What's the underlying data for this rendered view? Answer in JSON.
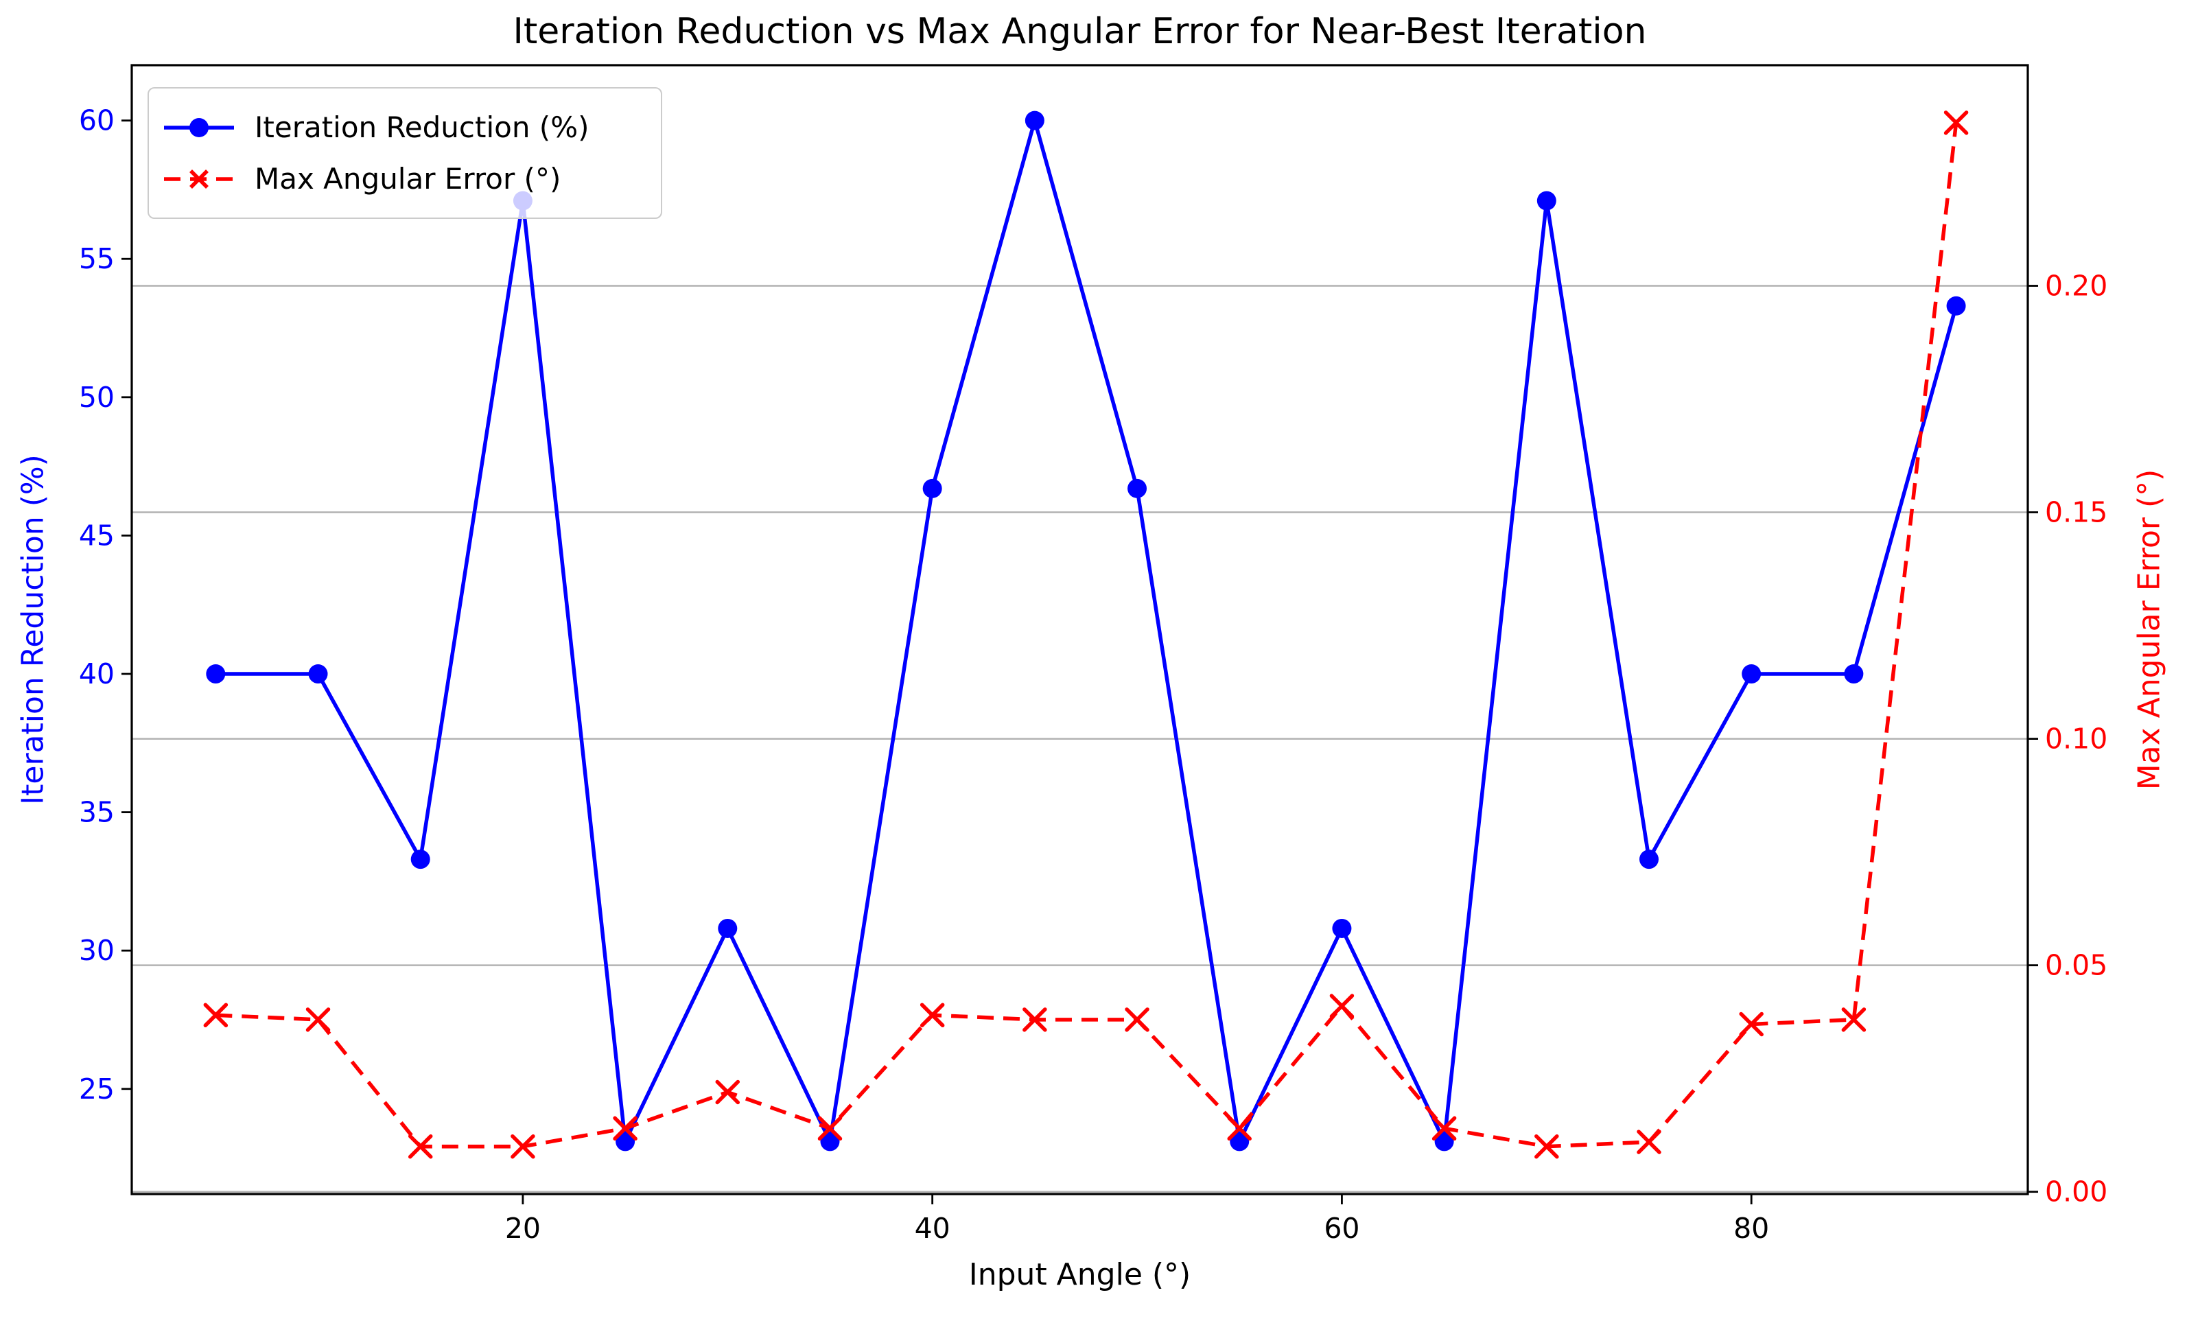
{
  "figure": {
    "title": "Iteration Reduction vs Max Angular Error for Near-Best Iteration",
    "background": "#ffffff"
  },
  "chart_data": {
    "type": "line",
    "title": "Iteration Reduction vs Max Angular Error for Near-Best Iteration",
    "xlabel": "Input Angle (°)",
    "ylabel_left": "Iteration Reduction (%)",
    "ylabel_right": "Max Angular Error (°)",
    "x": [
      5,
      10,
      15,
      20,
      25,
      30,
      35,
      40,
      45,
      50,
      55,
      60,
      65,
      70,
      75,
      80,
      85,
      90
    ],
    "series": [
      {
        "label": "Iteration Reduction (%)",
        "axis": "left",
        "color": "#0000ff",
        "linestyle": "solid",
        "marker": "circle",
        "values": [
          40.0,
          40.0,
          33.3,
          57.1,
          23.1,
          30.8,
          23.1,
          46.7,
          60.0,
          46.7,
          23.1,
          30.8,
          23.1,
          57.1,
          33.3,
          40.0,
          40.0,
          53.3
        ]
      },
      {
        "label": "Max Angular Error (°)",
        "axis": "right",
        "color": "#ff0000",
        "linestyle": "dashed",
        "marker": "x",
        "values": [
          0.039,
          0.038,
          0.01,
          0.01,
          0.014,
          0.022,
          0.014,
          0.039,
          0.038,
          0.038,
          0.014,
          0.041,
          0.014,
          0.01,
          0.011,
          0.037,
          0.038,
          0.236
        ]
      }
    ],
    "x_ticks": [
      20,
      40,
      60,
      80
    ],
    "y_ticks_left": [
      25,
      30,
      35,
      40,
      45,
      50,
      55,
      60
    ],
    "y_ticks_right_labels": [
      "0.00",
      "0.05",
      "0.10",
      "0.15",
      "0.20"
    ],
    "y_ticks_right_values": [
      0.0,
      0.05,
      0.1,
      0.15,
      0.2
    ],
    "xlim": [
      0.9,
      93.5
    ],
    "ylim_left": [
      21.2,
      62.0
    ],
    "ylim_right": [
      -0.0005,
      0.2487
    ],
    "grid": "horizontal-right-axis",
    "legend_position": "upper-left",
    "colors": {
      "left_axis_text": "#0000ff",
      "right_axis_text": "#ff0000",
      "x_axis_text": "#000000",
      "grid": "#b2b2b2",
      "spine": "#000000",
      "legend_border": "#cccccc"
    }
  },
  "legend": {
    "items": [
      {
        "label": "Iteration Reduction (%)"
      },
      {
        "label": "Max Angular Error (°)"
      }
    ]
  }
}
